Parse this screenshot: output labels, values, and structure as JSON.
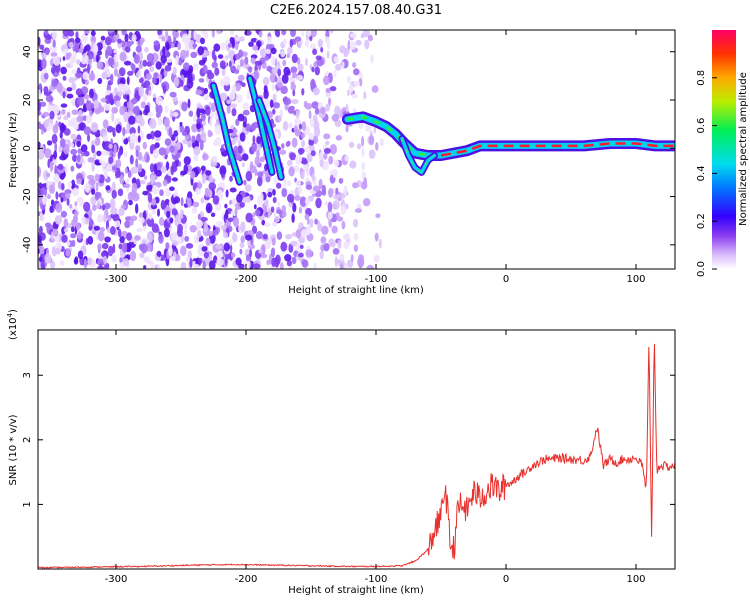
{
  "figure": {
    "title": "C2E6.2024.157.08.40.G31"
  },
  "colors": {
    "snr_line": "#e8302c",
    "spectrogram_cloud": "#8a3cf0",
    "spectrogram_core": "#e8002c",
    "colorbar_stops": [
      "#ffffff",
      "#b77df7",
      "#5500ff",
      "#0033ff",
      "#00ccee",
      "#00ee55",
      "#bbee00",
      "#ffaa00",
      "#ff3300",
      "#ff0066"
    ]
  },
  "chart_data": [
    {
      "type": "heatmap",
      "title": "",
      "xlabel": "Height of straight line (km)",
      "ylabel": "Frequency (Hz)",
      "xlim": [
        -360,
        130
      ],
      "ylim": [
        -50,
        49
      ],
      "x_ticks": [
        -300,
        -200,
        -100,
        0,
        100
      ],
      "y_ticks": [
        -40,
        -20,
        0,
        20,
        40
      ],
      "colorbar": {
        "label": "Normalized spectral amplitude",
        "range": [
          0,
          1
        ],
        "ticks": [
          0.0,
          0.2,
          0.4,
          0.6,
          0.8
        ]
      },
      "features": [
        {
          "name": "tilted streak",
          "points": [
            [
              -225,
              26
            ],
            [
              -218,
              12
            ],
            [
              -213,
              0
            ],
            [
              -205,
              -14
            ]
          ]
        },
        {
          "name": "tilted streak",
          "points": [
            [
              -197,
              29
            ],
            [
              -190,
              14
            ],
            [
              -185,
              2
            ],
            [
              -180,
              -10
            ]
          ]
        },
        {
          "name": "tilted streak",
          "points": [
            [
              -190,
              20
            ],
            [
              -183,
              10
            ],
            [
              -178,
              0
            ],
            [
              -173,
              -12
            ]
          ]
        },
        {
          "name": "ridge",
          "points": [
            [
              -122,
              12
            ],
            [
              -110,
              13
            ],
            [
              -100,
              11
            ],
            [
              -92,
              9
            ],
            [
              -85,
              6
            ],
            [
              -78,
              2
            ],
            [
              -70,
              -2
            ],
            [
              -60,
              -3
            ],
            [
              -50,
              -3
            ],
            [
              -40,
              -2
            ],
            [
              -30,
              -1
            ],
            [
              -20,
              1
            ],
            [
              -10,
              1
            ],
            [
              0,
              1
            ],
            [
              20,
              1
            ],
            [
              40,
              1
            ],
            [
              60,
              1
            ],
            [
              80,
              2
            ],
            [
              100,
              2
            ],
            [
              115,
              1
            ],
            [
              130,
              1
            ]
          ]
        },
        {
          "name": "dip",
          "points": [
            [
              -80,
              4
            ],
            [
              -75,
              -3
            ],
            [
              -70,
              -8
            ],
            [
              -65,
              -10
            ],
            [
              -60,
              -5
            ],
            [
              -55,
              -3
            ]
          ]
        }
      ]
    },
    {
      "type": "line",
      "title": "",
      "xlabel": "Height of straight line (km)",
      "ylabel": "SNR (10 * v/v)",
      "y_multiplier": "(x10",
      "y_multiplier_exp": "4",
      "y_multiplier_close": ")",
      "xlim": [
        -360,
        130
      ],
      "ylim": [
        0,
        3.7
      ],
      "x_ticks": [
        -300,
        -200,
        -100,
        0,
        100
      ],
      "y_ticks": [
        1,
        2,
        3
      ],
      "series": [
        {
          "x": [
            -360,
            -320,
            -280,
            -240,
            -210,
            -180,
            -150,
            -120,
            -100,
            -80,
            -70,
            -60,
            -55,
            -50,
            -47,
            -45,
            -43,
            -40,
            -38,
            -35,
            -30,
            -25,
            -20,
            -15,
            -10,
            -5,
            0,
            5,
            10,
            15,
            20,
            25,
            30,
            35,
            40,
            50,
            60,
            65,
            70,
            75,
            80,
            85,
            90,
            95,
            100,
            105,
            108,
            110,
            112,
            114,
            116,
            118,
            120,
            125,
            130
          ],
          "y": [
            0.02,
            0.03,
            0.04,
            0.06,
            0.07,
            0.06,
            0.05,
            0.04,
            0.04,
            0.05,
            0.12,
            0.3,
            0.6,
            0.8,
            1.3,
            0.9,
            0.4,
            0.3,
            0.8,
            1.0,
            0.9,
            1.2,
            1.1,
            1.2,
            1.3,
            1.2,
            1.3,
            1.35,
            1.45,
            1.5,
            1.6,
            1.65,
            1.7,
            1.7,
            1.72,
            1.7,
            1.68,
            1.75,
            2.2,
            1.6,
            1.7,
            1.65,
            1.7,
            1.7,
            1.72,
            1.6,
            1.2,
            3.6,
            0.4,
            3.7,
            1.5,
            1.6,
            1.6,
            1.58,
            1.6
          ]
        }
      ]
    }
  ]
}
